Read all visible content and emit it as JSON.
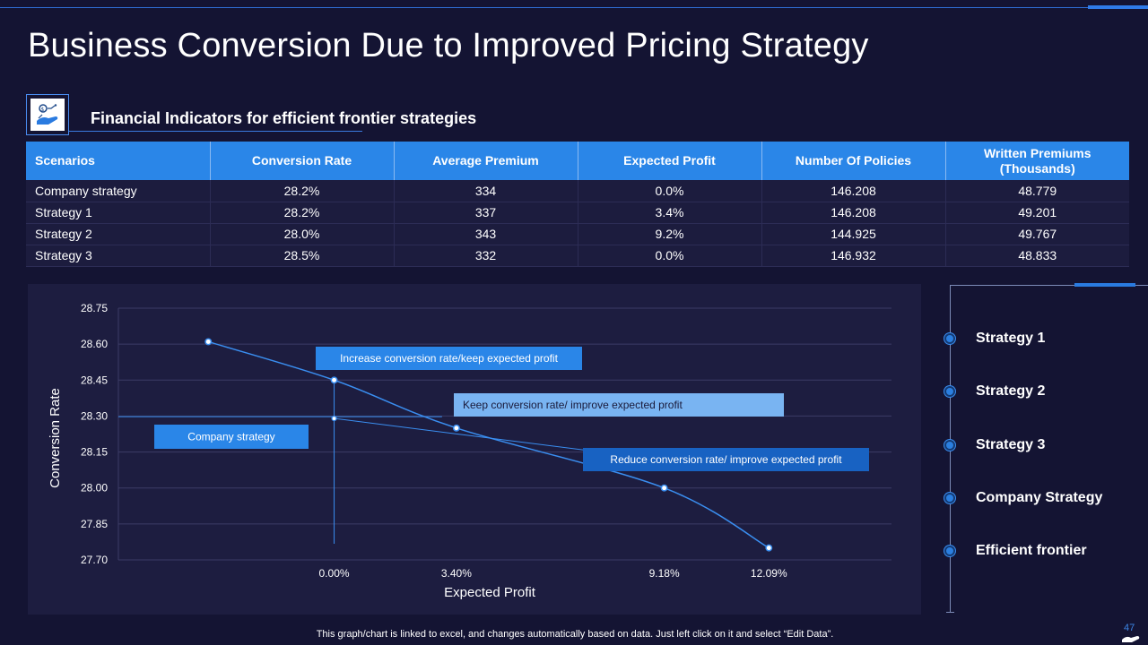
{
  "page": {
    "title": "Business Conversion Due to Improved Pricing Strategy",
    "subtitle": "Financial Indicators for efficient frontier strategies",
    "footer_note": "This graph/chart is linked to excel, and changes automatically based on data. Just left click on it and select “Edit Data”.",
    "page_number": "47",
    "accent_color": "#2a86e8",
    "background_color": "#141433"
  },
  "table": {
    "headers": [
      "Scenarios",
      "Conversion Rate",
      "Average Premium",
      "Expected Profit",
      "Number Of Policies",
      "Written Premiums (Thousands)"
    ],
    "rows": [
      [
        "Company strategy",
        "28.2%",
        "334",
        "0.0%",
        "146.208",
        "48.779"
      ],
      [
        "Strategy 1",
        "28.2%",
        "337",
        "3.4%",
        "146.208",
        "49.201"
      ],
      [
        "Strategy 2",
        "28.0%",
        "343",
        "9.2%",
        "144.925",
        "49.767"
      ],
      [
        "Strategy 3",
        "28.5%",
        "332",
        "0.0%",
        "146.932",
        "48.833"
      ]
    ]
  },
  "legend": {
    "items": [
      "Strategy 1",
      "Strategy 2",
      "Strategy 3",
      "Company Strategy",
      "Efficient frontier"
    ]
  },
  "chart_data": {
    "type": "scatter",
    "xlabel": "Expected Profit",
    "ylabel": "Conversion Rate",
    "x_tick_labels": [
      "0.00%",
      "3.40%",
      "9.18%",
      "12.09%"
    ],
    "x_ticks": [
      0.0,
      3.4,
      9.18,
      12.09
    ],
    "xlim": [
      -6.0,
      15.5
    ],
    "y_ticks": [
      27.7,
      27.85,
      28.0,
      28.15,
      28.3,
      28.45,
      28.6,
      28.75
    ],
    "y_tick_labels": [
      "27.70",
      "27.85",
      "28.00",
      "28.15",
      "28.30",
      "28.45",
      "28.60",
      "28.75"
    ],
    "ylim": [
      27.7,
      28.75
    ],
    "grid": true,
    "series": [
      {
        "name": "Efficient frontier",
        "points": [
          [
            -3.5,
            28.61
          ],
          [
            0.0,
            28.45
          ],
          [
            3.4,
            28.25
          ],
          [
            9.18,
            28.0
          ],
          [
            12.09,
            27.75
          ]
        ]
      },
      {
        "name": "Company strategy",
        "points": [
          [
            0.0,
            28.29
          ]
        ]
      }
    ],
    "annotations": [
      {
        "text": "Increase conversion rate/keep expected profit",
        "style": "mid"
      },
      {
        "text": "Keep conversion rate/ improve expected profit",
        "style": "light"
      },
      {
        "text": "Reduce conversion rate/ improve expected profit",
        "style": "dark"
      },
      {
        "text": "Company strategy",
        "style": "mid"
      }
    ]
  }
}
